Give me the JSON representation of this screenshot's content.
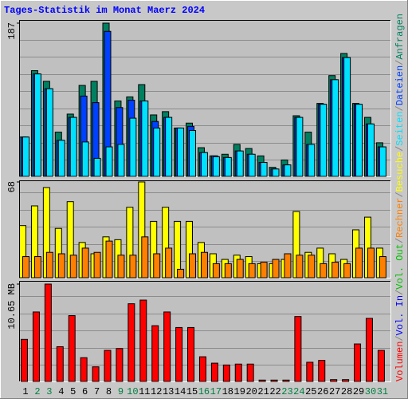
{
  "chart_data": {
    "type": "bar",
    "title": "Tages-Statistik im Monat Maerz 2024",
    "categories": [
      "1",
      "2",
      "3",
      "4",
      "5",
      "6",
      "7",
      "8",
      "9",
      "10",
      "11",
      "12",
      "13",
      "14",
      "15",
      "16",
      "17",
      "18",
      "19",
      "20",
      "21",
      "22",
      "23",
      "24",
      "25",
      "26",
      "27",
      "28",
      "29",
      "30",
      "31"
    ],
    "category_colors": [
      "#000000",
      "#008040",
      "#008040",
      "#000000",
      "#000000",
      "#000000",
      "#000000",
      "#000000",
      "#008040",
      "#008040",
      "#000000",
      "#000000",
      "#000000",
      "#000000",
      "#000000",
      "#008040",
      "#008040",
      "#000000",
      "#000000",
      "#000000",
      "#000000",
      "#000000",
      "#008040",
      "#008040",
      "#000000",
      "#000000",
      "#000000",
      "#000000",
      "#000000",
      "#008040",
      "#008040"
    ],
    "legend_separator": "/",
    "panels": [
      {
        "ylim": [
          0,
          187
        ],
        "yticks": [
          187
        ],
        "series": [
          {
            "name": "Anfragen",
            "color": "#008060",
            "values": [
              48,
              129,
              116,
              54,
              76,
              111,
              116,
              187,
              92,
              97,
              112,
              75,
              79,
              59,
              65,
              35,
              25,
              27,
              39,
              34,
              25,
              11,
              20,
              74,
              54,
              89,
              123,
              150,
              89,
              72,
              41
            ]
          },
          {
            "name": "Dateien",
            "color": "#0040ff",
            "values": [
              48,
              125,
              107,
              44,
              72,
              98,
              90,
              177,
              84,
              93,
              92,
              67,
              72,
              59,
              61,
              29,
              25,
              23,
              31,
              27,
              17,
              9,
              14,
              72,
              39,
              88,
              118,
              145,
              88,
              64,
              36
            ]
          },
          {
            "name": "Seiten",
            "color": "#00e0ff",
            "values": [
              48,
              125,
              107,
              44,
              72,
              42,
              22,
              36,
              39,
              71,
              92,
              59,
              72,
              59,
              56,
              29,
              24,
              23,
              31,
              27,
              17,
              9,
              14,
              72,
              39,
              88,
              118,
              145,
              88,
              64,
              36
            ]
          }
        ]
      },
      {
        "ylim": [
          0,
          68
        ],
        "yticks": [
          68
        ],
        "series": [
          {
            "name": "Besuche",
            "color": "#ffff00",
            "values": [
              37,
              51,
              64,
              35,
              54,
              25,
              17,
              29,
              27,
              50,
              68,
              40,
              50,
              40,
              40,
              25,
              17,
              13,
              16,
              15,
              10,
              10,
              13,
              47,
              18,
              21,
              17,
              13,
              34,
              43,
              21
            ]
          },
          {
            "name": "Rechner",
            "color": "#ff8000",
            "values": [
              15,
              15,
              18,
              17,
              16,
              21,
              18,
              26,
              16,
              16,
              29,
              17,
              21,
              6,
              17,
              18,
              10,
              10,
              13,
              10,
              11,
              13,
              17,
              16,
              16,
              10,
              11,
              10,
              21,
              21,
              15
            ]
          }
        ]
      },
      {
        "ylim": [
          0,
          10.65
        ],
        "yticks": [
          {
            "value": 10.65,
            "label": "10.65 MB"
          }
        ],
        "series": [
          {
            "name": "Volumen",
            "color": "#ff0000",
            "values": [
              4.6,
              7.6,
              10.65,
              3.8,
              7.2,
              2.6,
              1.6,
              3.4,
              3.6,
              8.5,
              8.9,
              6.1,
              7.6,
              5.9,
              5.9,
              2.7,
              2.0,
              1.8,
              1.9,
              1.9,
              0.15,
              0.15,
              0.15,
              7.1,
              2.1,
              2.3,
              0.2,
              0.2,
              4.1,
              6.9,
              3.4
            ]
          }
        ],
        "legend_only": [
          {
            "name": "Vol. In",
            "color": "#0000ff"
          },
          {
            "name": "Vol. Out",
            "color": "#00c000"
          }
        ]
      }
    ]
  }
}
